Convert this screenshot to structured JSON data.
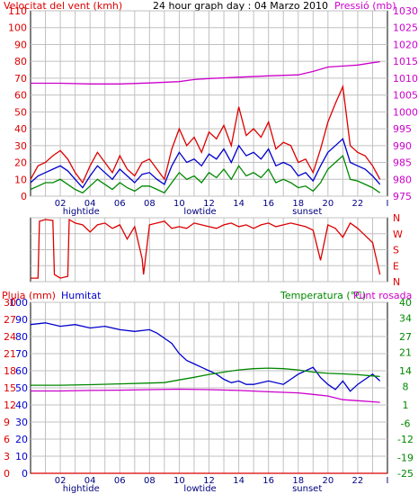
{
  "header": {
    "left": "Velocitat del vent (kmh)",
    "center": "24 hour graph day : 04 Marzo 2010",
    "right": "Pressió (mb)"
  },
  "colors": {
    "wind": "#dd0000",
    "gust": "#dd0000",
    "avg": "#0000cc",
    "low": "#008800",
    "pressure": "#cc00cc",
    "rain": "#dd0000",
    "humidity": "#0000cc",
    "temperature": "#008800",
    "dewpoint": "#cc00cc",
    "grid": "#c0c0c0",
    "frame": "#000000"
  },
  "x_ticks": [
    "02",
    "04",
    "06",
    "08",
    "10",
    "12",
    "14",
    "16",
    "18",
    "20",
    "22",
    "I"
  ],
  "x_events": [
    {
      "label": "hightide",
      "x": 3.4
    },
    {
      "label": "lowtide",
      "x": 11.4
    },
    {
      "label": "sunset",
      "x": 18.6
    }
  ],
  "chart_data": [
    {
      "type": "line",
      "title": "24 hour graph day : 04 Marzo 2010",
      "ylabel": "Velocitat del vent (kmh)",
      "y2label": "Pressió (mb)",
      "xlim": [
        0,
        24
      ],
      "ylim": [
        0,
        110
      ],
      "y2lim": [
        975,
        1030
      ],
      "yticks": [
        0,
        10,
        20,
        30,
        40,
        50,
        60,
        70,
        80,
        90,
        100,
        110
      ],
      "y2ticks": [
        975,
        980,
        985,
        990,
        995,
        1000,
        1005,
        1010,
        1015,
        1020,
        1025,
        1030
      ],
      "series": [
        {
          "name": "gust",
          "axis": "left",
          "color": "#dd0000",
          "x": [
            0,
            0.5,
            1,
            1.5,
            2,
            2.5,
            3,
            3.5,
            4,
            4.5,
            5,
            5.5,
            6,
            6.5,
            7,
            7.5,
            8,
            8.5,
            9,
            9.5,
            10,
            10.5,
            11,
            11.5,
            12,
            12.5,
            13,
            13.5,
            14,
            14.5,
            15,
            15.5,
            16,
            16.5,
            17,
            17.5,
            18,
            18.5,
            19,
            19.5,
            20,
            20.5,
            21,
            21.5,
            22,
            22.5,
            23,
            23.5
          ],
          "y": [
            10,
            18,
            20,
            24,
            27,
            22,
            14,
            8,
            18,
            26,
            20,
            14,
            24,
            16,
            12,
            20,
            22,
            16,
            10,
            28,
            40,
            30,
            35,
            26,
            38,
            34,
            42,
            30,
            53,
            36,
            40,
            35,
            44,
            28,
            32,
            30,
            20,
            22,
            14,
            28,
            44,
            55,
            65,
            30,
            26,
            24,
            18,
            10
          ]
        },
        {
          "name": "average",
          "axis": "left",
          "color": "#0000cc",
          "x": [
            0,
            0.5,
            1,
            1.5,
            2,
            2.5,
            3,
            3.5,
            4,
            4.5,
            5,
            5.5,
            6,
            6.5,
            7,
            7.5,
            8,
            8.5,
            9,
            9.5,
            10,
            10.5,
            11,
            11.5,
            12,
            12.5,
            13,
            13.5,
            14,
            14.5,
            15,
            15.5,
            16,
            16.5,
            17,
            17.5,
            18,
            18.5,
            19,
            19.5,
            20,
            20.5,
            21,
            21.5,
            22,
            22.5,
            23,
            23.5
          ],
          "y": [
            8,
            12,
            14,
            16,
            18,
            15,
            10,
            5,
            12,
            18,
            14,
            10,
            16,
            12,
            8,
            13,
            14,
            10,
            7,
            18,
            26,
            20,
            22,
            18,
            25,
            22,
            28,
            20,
            30,
            24,
            26,
            22,
            28,
            18,
            20,
            18,
            12,
            14,
            9,
            18,
            26,
            30,
            34,
            20,
            18,
            16,
            12,
            7
          ]
        },
        {
          "name": "minimum",
          "axis": "left",
          "color": "#008800",
          "x": [
            0,
            0.5,
            1,
            1.5,
            2,
            2.5,
            3,
            3.5,
            4,
            4.5,
            5,
            5.5,
            6,
            6.5,
            7,
            7.5,
            8,
            8.5,
            9,
            9.5,
            10,
            10.5,
            11,
            11.5,
            12,
            12.5,
            13,
            13.5,
            14,
            14.5,
            15,
            15.5,
            16,
            16.5,
            17,
            17.5,
            18,
            18.5,
            19,
            19.5,
            20,
            20.5,
            21,
            21.5,
            22,
            22.5,
            23,
            23.5
          ],
          "y": [
            4,
            6,
            8,
            8,
            10,
            7,
            4,
            2,
            6,
            10,
            7,
            4,
            8,
            5,
            3,
            6,
            6,
            4,
            2,
            8,
            14,
            10,
            12,
            8,
            14,
            11,
            16,
            10,
            18,
            12,
            14,
            11,
            16,
            8,
            10,
            8,
            5,
            6,
            3,
            8,
            16,
            20,
            24,
            10,
            9,
            7,
            5,
            2
          ]
        },
        {
          "name": "pressure",
          "axis": "right",
          "color": "#cc00cc",
          "x": [
            0,
            2,
            4,
            6,
            8,
            10,
            11,
            12,
            14,
            16,
            18,
            19,
            20,
            21,
            22,
            23,
            23.5
          ],
          "y": [
            1008.5,
            1008.5,
            1008.3,
            1008.3,
            1008.6,
            1009.0,
            1009.6,
            1009.9,
            1010.3,
            1010.7,
            1011.0,
            1012.0,
            1013.3,
            1013.6,
            1013.9,
            1014.6,
            1014.9
          ]
        }
      ]
    },
    {
      "type": "line",
      "title": "",
      "ylabel": "",
      "y2label": "",
      "xlim": [
        0,
        24
      ],
      "ylim": [
        0,
        360
      ],
      "yticks": [
        0,
        90,
        180,
        270,
        360
      ],
      "y2ticks": [
        "N",
        "E",
        "S",
        "W",
        "N"
      ],
      "series": [
        {
          "name": "direction",
          "color": "#dd0000",
          "x": [
            0,
            0.5,
            0.6,
            1,
            1.5,
            1.6,
            2,
            2.5,
            2.6,
            3,
            3.5,
            4,
            4.5,
            5,
            5.5,
            6,
            6.5,
            7,
            7.5,
            7.6,
            8,
            8.5,
            9,
            9.5,
            10,
            10.5,
            11,
            11.5,
            12,
            12.5,
            13,
            13.5,
            14,
            14.5,
            15,
            15.5,
            16,
            16.5,
            17,
            17.5,
            18,
            18.5,
            19,
            19.5,
            20,
            20.5,
            21,
            21.5,
            22,
            22.5,
            23,
            23.5
          ],
          "y": [
            20,
            20,
            340,
            350,
            345,
            40,
            20,
            30,
            350,
            330,
            320,
            280,
            320,
            330,
            300,
            320,
            240,
            310,
            130,
            40,
            320,
            330,
            340,
            300,
            310,
            300,
            330,
            320,
            310,
            300,
            320,
            330,
            310,
            320,
            300,
            320,
            330,
            310,
            320,
            330,
            320,
            310,
            290,
            120,
            320,
            300,
            250,
            330,
            300,
            260,
            220,
            40
          ]
        }
      ]
    },
    {
      "type": "line",
      "title": "",
      "ylabel": "Pluja (mm)",
      "y2label": "Temperatura (°C)",
      "xlim": [
        0,
        24
      ],
      "ylim": [
        0,
        100
      ],
      "yticks": [
        0,
        10,
        20,
        30,
        40,
        50,
        60,
        70,
        80,
        90,
        100
      ],
      "yticks_rain": [
        0,
        3,
        6,
        9,
        12,
        15,
        18,
        21,
        24,
        27,
        30
      ],
      "y2lim": [
        -25,
        40
      ],
      "y2ticks": [
        -25,
        -19,
        -12,
        -6,
        1,
        8,
        14,
        21,
        27,
        34,
        40
      ],
      "series": [
        {
          "name": "Pluja (mm)",
          "axis": "left",
          "color": "#dd0000",
          "x": [
            0,
            24
          ],
          "y": [
            0,
            0
          ]
        },
        {
          "name": "Humitat",
          "axis": "left",
          "color": "#0000cc",
          "x": [
            0,
            1,
            2,
            3,
            4,
            5,
            6,
            7,
            8,
            8.5,
            9,
            9.5,
            10,
            10.5,
            11,
            11.5,
            12,
            12.5,
            13,
            13.5,
            14,
            14.5,
            15,
            16,
            17,
            17.5,
            18,
            18.5,
            19,
            19.5,
            20,
            20.5,
            21,
            21.5,
            22,
            22.5,
            23,
            23.5
          ],
          "y": [
            87,
            88,
            86,
            87,
            85,
            86,
            84,
            83,
            84,
            82,
            79,
            76,
            70,
            66,
            64,
            62,
            60,
            58,
            55,
            53,
            54,
            52,
            52,
            54,
            52,
            55,
            58,
            60,
            62,
            56,
            52,
            49,
            54,
            48,
            52,
            55,
            58,
            54
          ]
        },
        {
          "name": "Temperatura (°C)",
          "axis": "right",
          "color": "#008800",
          "x": [
            0,
            2,
            4,
            6,
            8,
            9,
            10,
            11,
            12,
            13,
            14,
            15,
            16,
            17,
            18,
            19,
            20,
            21,
            22,
            23,
            23.5
          ],
          "y": [
            8.5,
            8.5,
            8.7,
            9.0,
            9.3,
            9.5,
            10.5,
            11.5,
            12.6,
            13.5,
            14.3,
            14.8,
            15.0,
            14.8,
            14.3,
            13.5,
            13.0,
            12.8,
            12.5,
            12.0,
            11.8
          ]
        },
        {
          "name": "Punt rosada",
          "axis": "right",
          "color": "#cc00cc",
          "x": [
            0,
            2,
            4,
            6,
            8,
            10,
            12,
            14,
            16,
            18,
            19,
            20,
            21,
            22,
            23,
            23.5
          ],
          "y": [
            6.3,
            6.3,
            6.5,
            6.6,
            6.8,
            7.0,
            6.8,
            6.5,
            6.0,
            5.6,
            5.0,
            4.4,
            3.0,
            2.6,
            2.2,
            2.0
          ]
        }
      ]
    }
  ],
  "legend": {
    "rain": "Pluja (mm)",
    "humidity": "Humitat",
    "temperature": "Temperatura (°C)",
    "dewpoint": "Punt rosada"
  }
}
